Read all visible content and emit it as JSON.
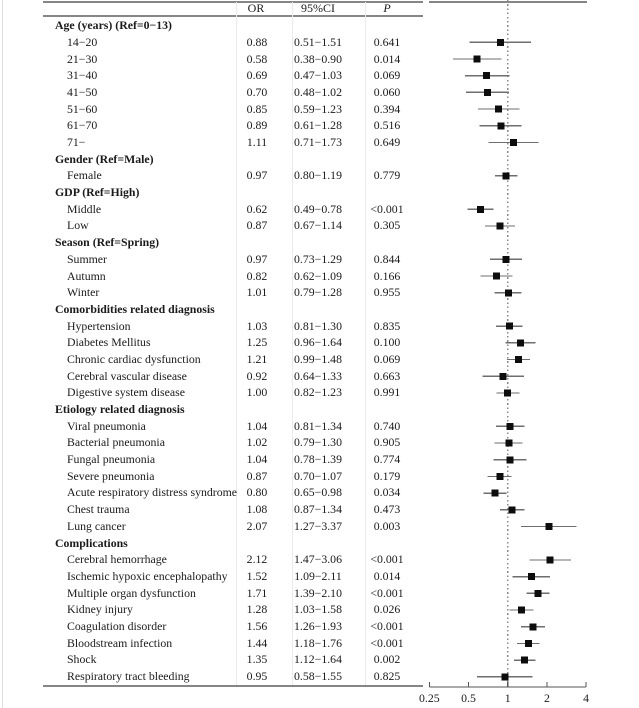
{
  "chart_data": {
    "type": "scatter",
    "subtype": "forest-plot",
    "columns": {
      "or": "OR",
      "ci": "95%CI",
      "p": "P"
    },
    "xscale": "log",
    "xlim": [
      0.25,
      4
    ],
    "x_ticks": [
      0.25,
      0.5,
      1,
      2,
      4
    ],
    "x_tick_labels": [
      "0.25",
      "0.5",
      "1",
      "2",
      "4"
    ],
    "reference_line": 1,
    "legend": "none",
    "grid": "off",
    "rows": [
      {
        "label": "Age (years) (Ref=0−13)",
        "group": true
      },
      {
        "label": "14−20",
        "or": 0.88,
        "ci_low": 0.51,
        "ci_high": 1.51,
        "p": "0.641"
      },
      {
        "label": "21−30",
        "or": 0.58,
        "ci_low": 0.38,
        "ci_high": 0.9,
        "p": "0.014"
      },
      {
        "label": "31−40",
        "or": 0.69,
        "ci_low": 0.47,
        "ci_high": 1.03,
        "p": "0.069"
      },
      {
        "label": "41−50",
        "or": 0.7,
        "ci_low": 0.48,
        "ci_high": 1.02,
        "p": "0.060"
      },
      {
        "label": "51−60",
        "or": 0.85,
        "ci_low": 0.59,
        "ci_high": 1.23,
        "p": "0.394"
      },
      {
        "label": "61−70",
        "or": 0.89,
        "ci_low": 0.61,
        "ci_high": 1.28,
        "p": "0.516"
      },
      {
        "label": "71−",
        "or": 1.11,
        "ci_low": 0.71,
        "ci_high": 1.73,
        "p": "0.649"
      },
      {
        "label": "Gender (Ref=Male)",
        "group": true
      },
      {
        "label": "Female",
        "or": 0.97,
        "ci_low": 0.8,
        "ci_high": 1.19,
        "p": "0.779"
      },
      {
        "label": "GDP (Ref=High)",
        "group": true
      },
      {
        "label": "Middle",
        "or": 0.62,
        "ci_low": 0.49,
        "ci_high": 0.78,
        "p": "<0.001"
      },
      {
        "label": "Low",
        "or": 0.87,
        "ci_low": 0.67,
        "ci_high": 1.14,
        "p": "0.305"
      },
      {
        "label": "Season (Ref=Spring)",
        "group": true
      },
      {
        "label": "Summer",
        "or": 0.97,
        "ci_low": 0.73,
        "ci_high": 1.29,
        "p": "0.844"
      },
      {
        "label": "Autumn",
        "or": 0.82,
        "ci_low": 0.62,
        "ci_high": 1.09,
        "p": "0.166"
      },
      {
        "label": "Winter",
        "or": 1.01,
        "ci_low": 0.79,
        "ci_high": 1.28,
        "p": "0.955"
      },
      {
        "label": "Comorbidities related diagnosis",
        "group": true
      },
      {
        "label": "Hypertension",
        "or": 1.03,
        "ci_low": 0.81,
        "ci_high": 1.3,
        "p": "0.835"
      },
      {
        "label": "Diabetes Mellitus",
        "or": 1.25,
        "ci_low": 0.96,
        "ci_high": 1.64,
        "p": "0.100"
      },
      {
        "label": "Chronic cardiac dysfunction",
        "or": 1.21,
        "ci_low": 0.99,
        "ci_high": 1.48,
        "p": "0.069"
      },
      {
        "label": "Cerebral vascular disease",
        "or": 0.92,
        "ci_low": 0.64,
        "ci_high": 1.33,
        "p": "0.663"
      },
      {
        "label": "Digestive system disease",
        "or": 1.0,
        "ci_low": 0.82,
        "ci_high": 1.23,
        "p": "0.991"
      },
      {
        "label": "Etiology related diagnosis",
        "group": true
      },
      {
        "label": "Viral pneumonia",
        "or": 1.04,
        "ci_low": 0.81,
        "ci_high": 1.34,
        "p": "0.740"
      },
      {
        "label": "Bacterial pneumonia",
        "or": 1.02,
        "ci_low": 0.79,
        "ci_high": 1.3,
        "p": "0.905"
      },
      {
        "label": "Fungal pneumonia",
        "or": 1.04,
        "ci_low": 0.78,
        "ci_high": 1.39,
        "p": "0.774"
      },
      {
        "label": "Severe pneumonia",
        "or": 0.87,
        "ci_low": 0.7,
        "ci_high": 1.07,
        "p": "0.179"
      },
      {
        "label": "Acute respiratory distress syndrome",
        "or": 0.8,
        "ci_low": 0.65,
        "ci_high": 0.98,
        "p": "0.034"
      },
      {
        "label": "Chest trauma",
        "or": 1.08,
        "ci_low": 0.87,
        "ci_high": 1.34,
        "p": "0.473"
      },
      {
        "label": "Lung cancer",
        "or": 2.07,
        "ci_low": 1.27,
        "ci_high": 3.37,
        "p": "0.003"
      },
      {
        "label": "Complications",
        "group": true
      },
      {
        "label": "Cerebral hemorrhage",
        "or": 2.12,
        "ci_low": 1.47,
        "ci_high": 3.06,
        "p": "<0.001"
      },
      {
        "label": "Ischemic hypoxic encephalopathy",
        "or": 1.52,
        "ci_low": 1.09,
        "ci_high": 2.11,
        "p": "0.014"
      },
      {
        "label": "Multiple organ dysfunction",
        "or": 1.71,
        "ci_low": 1.39,
        "ci_high": 2.1,
        "p": "<0.001"
      },
      {
        "label": "Kidney injury",
        "or": 1.28,
        "ci_low": 1.03,
        "ci_high": 1.58,
        "p": "0.026"
      },
      {
        "label": "Coagulation disorder",
        "or": 1.56,
        "ci_low": 1.26,
        "ci_high": 1.93,
        "p": "<0.001"
      },
      {
        "label": "Bloodstream infection",
        "or": 1.44,
        "ci_low": 1.18,
        "ci_high": 1.76,
        "p": "<0.001"
      },
      {
        "label": "Shock",
        "or": 1.35,
        "ci_low": 1.12,
        "ci_high": 1.64,
        "p": "0.002"
      },
      {
        "label": "Respiratory tract bleeding",
        "or": 0.95,
        "ci_low": 0.58,
        "ci_high": 1.55,
        "p": "0.825"
      }
    ],
    "colors": {
      "marker": "#0d0d0d",
      "ci_line": "#6e6e6e",
      "rule": "#868686",
      "ref_line": "#8a8a8a"
    }
  }
}
